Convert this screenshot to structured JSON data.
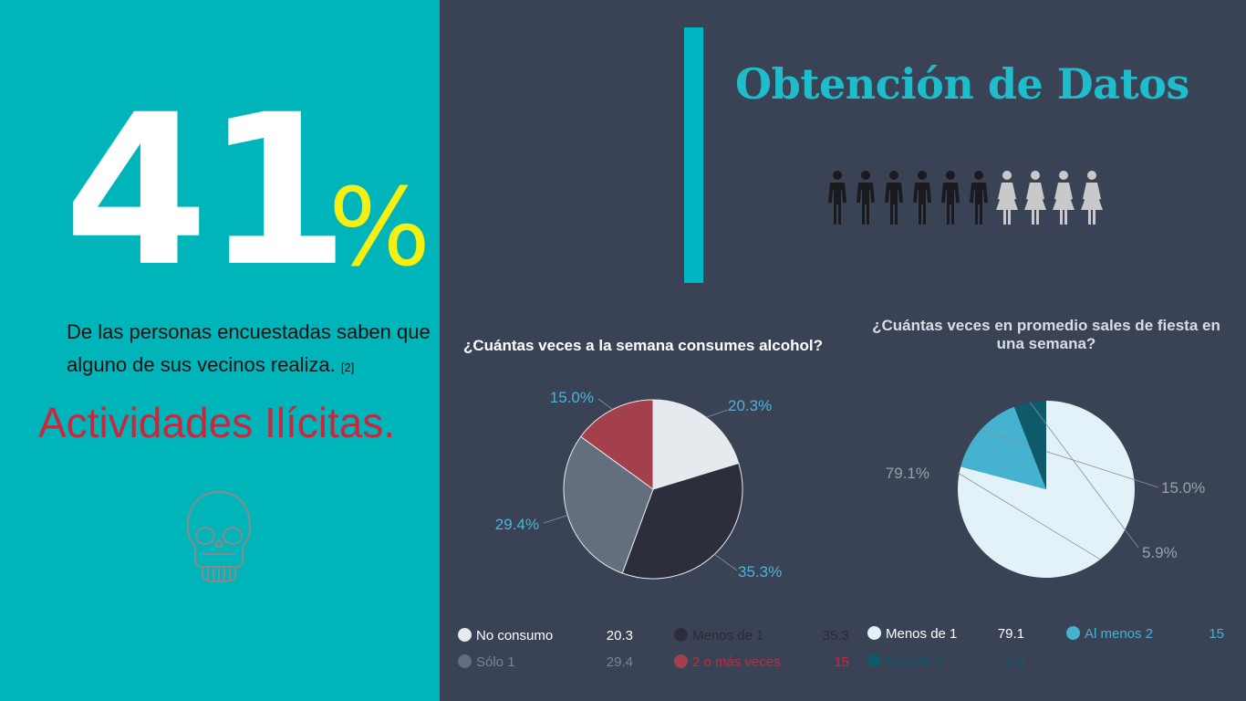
{
  "stat": {
    "number": "41",
    "percent_sign": "%",
    "description": "De las personas encuestadas saben que alguno de sus vecinos realiza.",
    "reference": "[2]",
    "highlight": "Actividades Ilícitas."
  },
  "header": {
    "title": "Obtención de Datos"
  },
  "people_icons": {
    "men": 6,
    "women": 4
  },
  "chart_data": [
    {
      "type": "pie",
      "title": "¿Cuántas veces a la semana consumes alcohol?",
      "slices": [
        {
          "name": "No consumo",
          "value": 20.3,
          "label": "20.3%",
          "legend_value": "20.3",
          "color": "#e6e9ed"
        },
        {
          "name": "Menos de 1",
          "value": 35.3,
          "label": "35.3%",
          "legend_value": "35.3",
          "color": "#2d2e3c"
        },
        {
          "name": "Sólo 1",
          "value": 29.4,
          "label": "29.4%",
          "legend_value": "29.4",
          "color": "#646f7d"
        },
        {
          "name": "2 o más veces",
          "value": 15,
          "label": "15.0%",
          "legend_value": "15",
          "color": "#a3404b"
        }
      ],
      "label_color": "#4ab3dc",
      "legend": "bottom"
    },
    {
      "type": "pie",
      "title": "¿Cuántas veces en promedio sales de fiesta en una semana?",
      "slices": [
        {
          "name": "Menos de 1",
          "value": 79.1,
          "label": "79.1%",
          "legend_value": "79.1",
          "color": "#e3f2f9"
        },
        {
          "name": "Al menos 2",
          "value": 15,
          "label": "15.0%",
          "legend_value": "15",
          "color": "#45b2d0"
        },
        {
          "name": "Más de 3",
          "value": 5.9,
          "label": "5.9%",
          "legend_value": "5.9",
          "color": "#0e5a6a"
        }
      ],
      "label_color": "#9aa0a8",
      "legend": "bottom"
    }
  ]
}
